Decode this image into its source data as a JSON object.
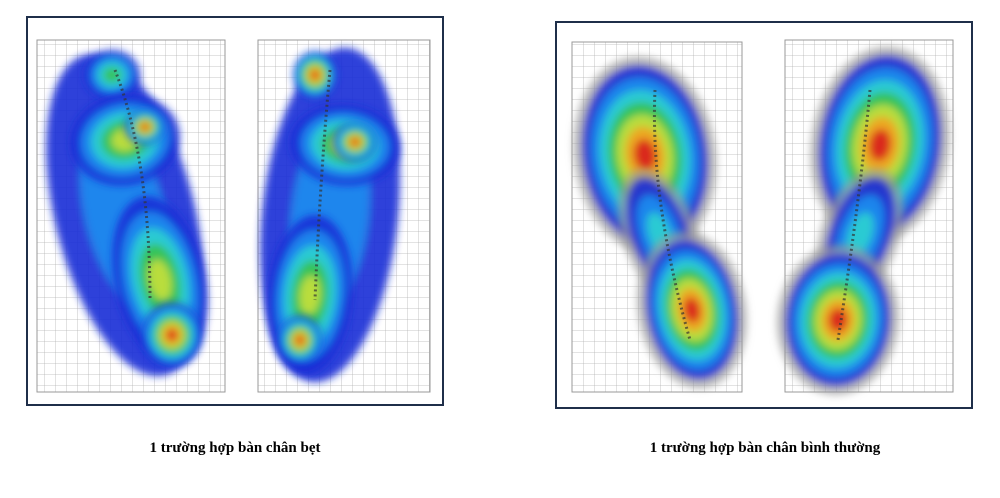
{
  "figures": [
    {
      "caption": "1 trường hợp bàn chân bẹt"
    },
    {
      "caption": "1 trường hợp bàn chân bình thường"
    }
  ]
}
